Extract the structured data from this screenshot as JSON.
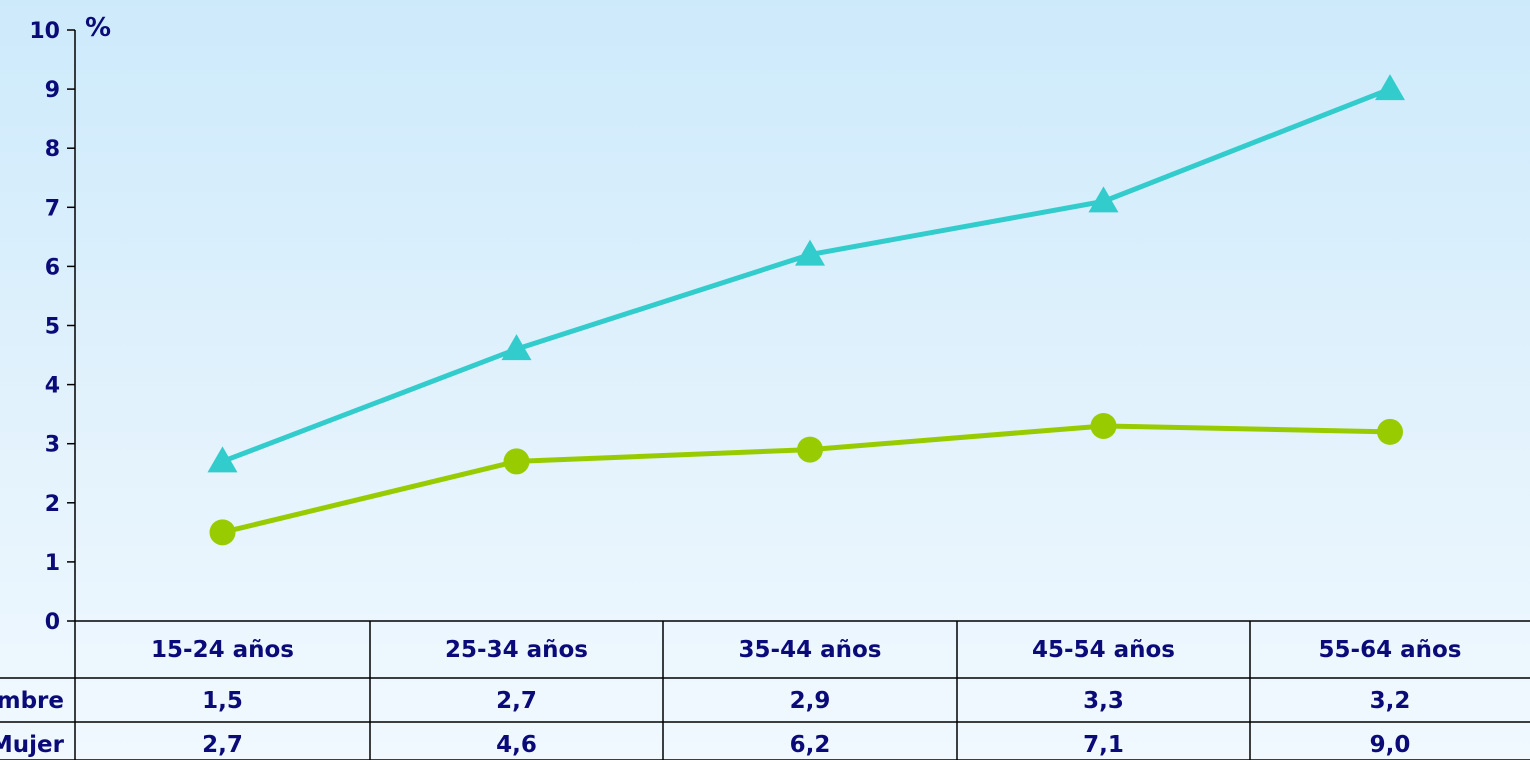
{
  "chart_data": {
    "type": "line",
    "ylabel": "%",
    "ylim": [
      0,
      10
    ],
    "yticks": [
      "0",
      "1",
      "2",
      "3",
      "4",
      "5",
      "6",
      "7",
      "8",
      "9",
      "10"
    ],
    "categories": [
      "15-24 años",
      "25-34 años",
      "35-44 años",
      "45-54 años",
      "55-64 años"
    ],
    "series": [
      {
        "name": "Hombre",
        "values": [
          1.5,
          2.7,
          2.9,
          3.3,
          3.2
        ],
        "labels": [
          "1,5",
          "2,7",
          "2,9",
          "3,3",
          "3,2"
        ],
        "color": "#99cc00",
        "marker": "circle"
      },
      {
        "name": "Mujer",
        "values": [
          2.7,
          4.6,
          6.2,
          7.1,
          9.0
        ],
        "labels": [
          "2,7",
          "4,6",
          "6,2",
          "7,1",
          "9,0"
        ],
        "color": "#33cccc",
        "marker": "triangle"
      }
    ],
    "legend": "data-table-below",
    "grid": false
  }
}
